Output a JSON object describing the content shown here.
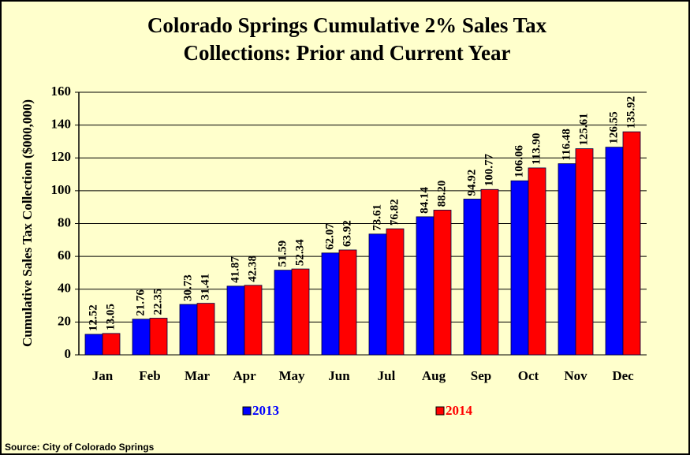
{
  "chart_data": {
    "type": "bar",
    "title": [
      "Colorado Springs Cumulative 2% Sales Tax",
      "Collections:  Prior and Current Year"
    ],
    "y_label": "Cumulative  Sales Tax Collection ($000,000)",
    "source": "Source: City of Colorado  Springs",
    "categories": [
      "Jan",
      "Feb",
      "Mar",
      "Apr",
      "May",
      "Jun",
      "Jul",
      "Aug",
      "Sep",
      "Oct",
      "Nov",
      "Dec"
    ],
    "series": [
      {
        "name": "2013",
        "color": "#0000ff",
        "values": [
          12.52,
          21.76,
          30.73,
          41.87,
          51.59,
          62.07,
          73.61,
          84.14,
          94.92,
          106.06,
          116.48,
          126.55
        ],
        "value_labels": [
          "12.52",
          "21.76",
          "30.73",
          "41.87",
          "51.59",
          "62.07",
          "73.61",
          "84.14",
          "94.92",
          "106.06",
          "116.48",
          "126.55"
        ]
      },
      {
        "name": "2014",
        "color": "#ff0000",
        "values": [
          13.05,
          22.35,
          31.41,
          42.38,
          52.34,
          63.92,
          76.82,
          88.2,
          100.77,
          113.9,
          125.61,
          135.92
        ],
        "value_labels": [
          "13.05",
          "22.35",
          "31.41",
          "42.38",
          "52.34",
          "63.92",
          "76.82",
          "88.20",
          "100.77",
          "113.90",
          "125.61",
          "135.92"
        ]
      }
    ],
    "ylim": [
      0,
      160
    ],
    "yticks": [
      0,
      20,
      40,
      60,
      80,
      100,
      120,
      140,
      160
    ],
    "grid": true,
    "legend": "bottom"
  }
}
